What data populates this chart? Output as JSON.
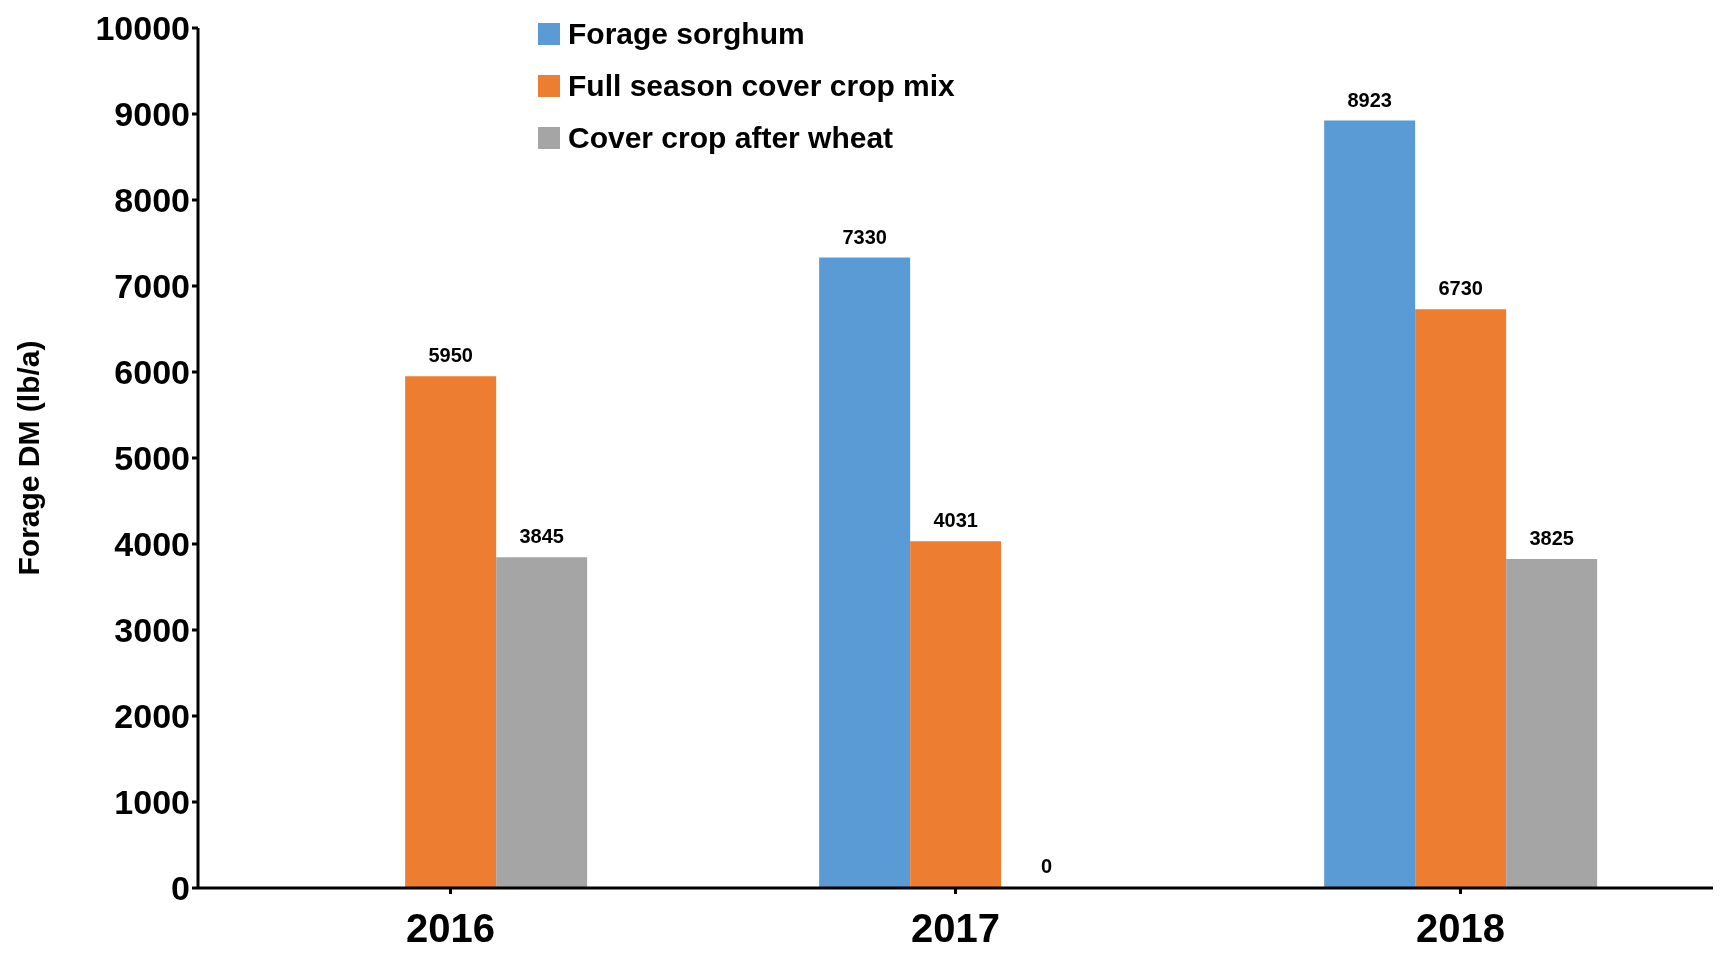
{
  "chart_data": {
    "type": "bar",
    "ylabel": "Forage DM (lb/a)",
    "categories": [
      "2016",
      "2017",
      "2018"
    ],
    "series": [
      {
        "name": "Forage sorghum",
        "color": "#5b9bd5",
        "values": [
          null,
          7330,
          8923
        ]
      },
      {
        "name": "Full season cover crop mix",
        "color": "#ed7d31",
        "values": [
          5950,
          4031,
          6730
        ]
      },
      {
        "name": "Cover crop after wheat",
        "color": "#a5a5a5",
        "values": [
          3845,
          0,
          3825
        ]
      }
    ],
    "ylim": [
      0,
      10000
    ],
    "yticks": [
      0,
      1000,
      2000,
      3000,
      4000,
      5000,
      6000,
      7000,
      8000,
      9000,
      10000
    ],
    "grid": false,
    "legend": "top",
    "data_labels": true
  }
}
